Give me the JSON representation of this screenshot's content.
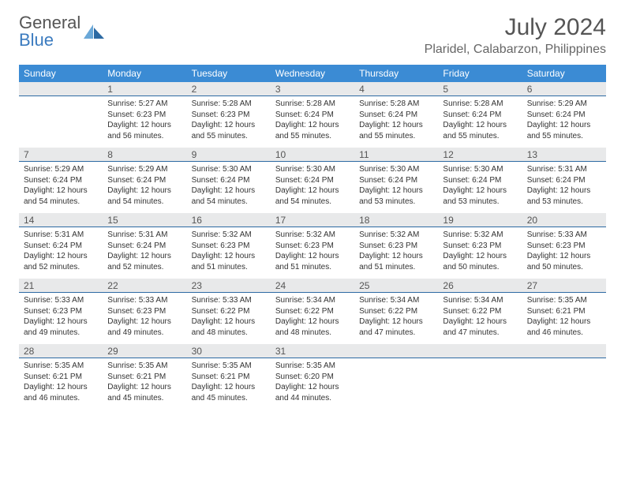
{
  "logo": {
    "word1": "General",
    "word2": "Blue"
  },
  "title": "July 2024",
  "location": "Plaridel, Calabarzon, Philippines",
  "colors": {
    "header_bg": "#3b8bd4",
    "header_text": "#ffffff",
    "daynum_bg": "#e8e9ea",
    "daynum_border": "#2d6aa3",
    "body_text": "#333333",
    "title_text": "#555555",
    "logo_gray": "#555555",
    "logo_blue": "#3b7bbf",
    "background": "#ffffff"
  },
  "typography": {
    "title_fontsize": 30,
    "location_fontsize": 16,
    "dow_fontsize": 12,
    "daynum_fontsize": 12,
    "content_fontsize": 10,
    "font_family": "Arial"
  },
  "days_of_week": [
    "Sunday",
    "Monday",
    "Tuesday",
    "Wednesday",
    "Thursday",
    "Friday",
    "Saturday"
  ],
  "weeks": [
    [
      {
        "num": "",
        "sunrise": "",
        "sunset": "",
        "daylight1": "",
        "daylight2": ""
      },
      {
        "num": "1",
        "sunrise": "Sunrise: 5:27 AM",
        "sunset": "Sunset: 6:23 PM",
        "daylight1": "Daylight: 12 hours",
        "daylight2": "and 56 minutes."
      },
      {
        "num": "2",
        "sunrise": "Sunrise: 5:28 AM",
        "sunset": "Sunset: 6:23 PM",
        "daylight1": "Daylight: 12 hours",
        "daylight2": "and 55 minutes."
      },
      {
        "num": "3",
        "sunrise": "Sunrise: 5:28 AM",
        "sunset": "Sunset: 6:24 PM",
        "daylight1": "Daylight: 12 hours",
        "daylight2": "and 55 minutes."
      },
      {
        "num": "4",
        "sunrise": "Sunrise: 5:28 AM",
        "sunset": "Sunset: 6:24 PM",
        "daylight1": "Daylight: 12 hours",
        "daylight2": "and 55 minutes."
      },
      {
        "num": "5",
        "sunrise": "Sunrise: 5:28 AM",
        "sunset": "Sunset: 6:24 PM",
        "daylight1": "Daylight: 12 hours",
        "daylight2": "and 55 minutes."
      },
      {
        "num": "6",
        "sunrise": "Sunrise: 5:29 AM",
        "sunset": "Sunset: 6:24 PM",
        "daylight1": "Daylight: 12 hours",
        "daylight2": "and 55 minutes."
      }
    ],
    [
      {
        "num": "7",
        "sunrise": "Sunrise: 5:29 AM",
        "sunset": "Sunset: 6:24 PM",
        "daylight1": "Daylight: 12 hours",
        "daylight2": "and 54 minutes."
      },
      {
        "num": "8",
        "sunrise": "Sunrise: 5:29 AM",
        "sunset": "Sunset: 6:24 PM",
        "daylight1": "Daylight: 12 hours",
        "daylight2": "and 54 minutes."
      },
      {
        "num": "9",
        "sunrise": "Sunrise: 5:30 AM",
        "sunset": "Sunset: 6:24 PM",
        "daylight1": "Daylight: 12 hours",
        "daylight2": "and 54 minutes."
      },
      {
        "num": "10",
        "sunrise": "Sunrise: 5:30 AM",
        "sunset": "Sunset: 6:24 PM",
        "daylight1": "Daylight: 12 hours",
        "daylight2": "and 54 minutes."
      },
      {
        "num": "11",
        "sunrise": "Sunrise: 5:30 AM",
        "sunset": "Sunset: 6:24 PM",
        "daylight1": "Daylight: 12 hours",
        "daylight2": "and 53 minutes."
      },
      {
        "num": "12",
        "sunrise": "Sunrise: 5:30 AM",
        "sunset": "Sunset: 6:24 PM",
        "daylight1": "Daylight: 12 hours",
        "daylight2": "and 53 minutes."
      },
      {
        "num": "13",
        "sunrise": "Sunrise: 5:31 AM",
        "sunset": "Sunset: 6:24 PM",
        "daylight1": "Daylight: 12 hours",
        "daylight2": "and 53 minutes."
      }
    ],
    [
      {
        "num": "14",
        "sunrise": "Sunrise: 5:31 AM",
        "sunset": "Sunset: 6:24 PM",
        "daylight1": "Daylight: 12 hours",
        "daylight2": "and 52 minutes."
      },
      {
        "num": "15",
        "sunrise": "Sunrise: 5:31 AM",
        "sunset": "Sunset: 6:24 PM",
        "daylight1": "Daylight: 12 hours",
        "daylight2": "and 52 minutes."
      },
      {
        "num": "16",
        "sunrise": "Sunrise: 5:32 AM",
        "sunset": "Sunset: 6:23 PM",
        "daylight1": "Daylight: 12 hours",
        "daylight2": "and 51 minutes."
      },
      {
        "num": "17",
        "sunrise": "Sunrise: 5:32 AM",
        "sunset": "Sunset: 6:23 PM",
        "daylight1": "Daylight: 12 hours",
        "daylight2": "and 51 minutes."
      },
      {
        "num": "18",
        "sunrise": "Sunrise: 5:32 AM",
        "sunset": "Sunset: 6:23 PM",
        "daylight1": "Daylight: 12 hours",
        "daylight2": "and 51 minutes."
      },
      {
        "num": "19",
        "sunrise": "Sunrise: 5:32 AM",
        "sunset": "Sunset: 6:23 PM",
        "daylight1": "Daylight: 12 hours",
        "daylight2": "and 50 minutes."
      },
      {
        "num": "20",
        "sunrise": "Sunrise: 5:33 AM",
        "sunset": "Sunset: 6:23 PM",
        "daylight1": "Daylight: 12 hours",
        "daylight2": "and 50 minutes."
      }
    ],
    [
      {
        "num": "21",
        "sunrise": "Sunrise: 5:33 AM",
        "sunset": "Sunset: 6:23 PM",
        "daylight1": "Daylight: 12 hours",
        "daylight2": "and 49 minutes."
      },
      {
        "num": "22",
        "sunrise": "Sunrise: 5:33 AM",
        "sunset": "Sunset: 6:23 PM",
        "daylight1": "Daylight: 12 hours",
        "daylight2": "and 49 minutes."
      },
      {
        "num": "23",
        "sunrise": "Sunrise: 5:33 AM",
        "sunset": "Sunset: 6:22 PM",
        "daylight1": "Daylight: 12 hours",
        "daylight2": "and 48 minutes."
      },
      {
        "num": "24",
        "sunrise": "Sunrise: 5:34 AM",
        "sunset": "Sunset: 6:22 PM",
        "daylight1": "Daylight: 12 hours",
        "daylight2": "and 48 minutes."
      },
      {
        "num": "25",
        "sunrise": "Sunrise: 5:34 AM",
        "sunset": "Sunset: 6:22 PM",
        "daylight1": "Daylight: 12 hours",
        "daylight2": "and 47 minutes."
      },
      {
        "num": "26",
        "sunrise": "Sunrise: 5:34 AM",
        "sunset": "Sunset: 6:22 PM",
        "daylight1": "Daylight: 12 hours",
        "daylight2": "and 47 minutes."
      },
      {
        "num": "27",
        "sunrise": "Sunrise: 5:35 AM",
        "sunset": "Sunset: 6:21 PM",
        "daylight1": "Daylight: 12 hours",
        "daylight2": "and 46 minutes."
      }
    ],
    [
      {
        "num": "28",
        "sunrise": "Sunrise: 5:35 AM",
        "sunset": "Sunset: 6:21 PM",
        "daylight1": "Daylight: 12 hours",
        "daylight2": "and 46 minutes."
      },
      {
        "num": "29",
        "sunrise": "Sunrise: 5:35 AM",
        "sunset": "Sunset: 6:21 PM",
        "daylight1": "Daylight: 12 hours",
        "daylight2": "and 45 minutes."
      },
      {
        "num": "30",
        "sunrise": "Sunrise: 5:35 AM",
        "sunset": "Sunset: 6:21 PM",
        "daylight1": "Daylight: 12 hours",
        "daylight2": "and 45 minutes."
      },
      {
        "num": "31",
        "sunrise": "Sunrise: 5:35 AM",
        "sunset": "Sunset: 6:20 PM",
        "daylight1": "Daylight: 12 hours",
        "daylight2": "and 44 minutes."
      },
      {
        "num": "",
        "sunrise": "",
        "sunset": "",
        "daylight1": "",
        "daylight2": ""
      },
      {
        "num": "",
        "sunrise": "",
        "sunset": "",
        "daylight1": "",
        "daylight2": ""
      },
      {
        "num": "",
        "sunrise": "",
        "sunset": "",
        "daylight1": "",
        "daylight2": ""
      }
    ]
  ]
}
